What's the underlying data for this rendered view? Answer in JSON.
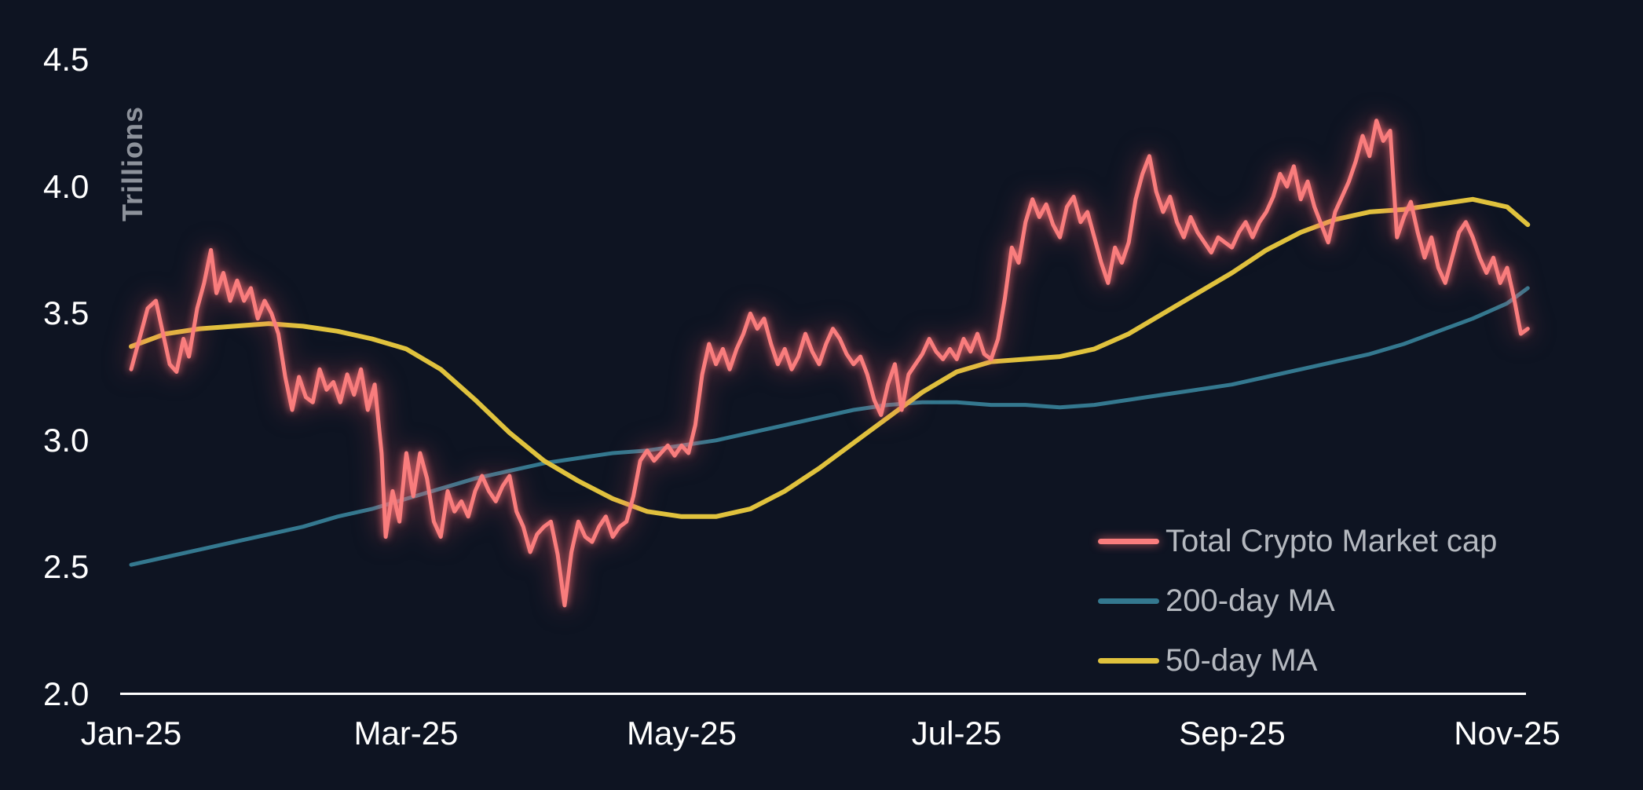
{
  "chart_data": {
    "type": "line",
    "title": "",
    "ylabel": "Trillions",
    "x_unit": "months since Jan-2025 (0 = Jan-25, 10 = Nov-25)",
    "ylim": [
      2.0,
      4.5
    ],
    "xlim": [
      0,
      10.15
    ],
    "grid": false,
    "legend_position": "bottom-right",
    "background": "#0e1422",
    "axis_color": "#ffffff",
    "yticks": [
      "4.5",
      "4.0",
      "3.5",
      "3.0",
      "2.5",
      "2.0"
    ],
    "xticks": [
      "Jan-25",
      "Mar-25",
      "May-25",
      "Jul-25",
      "Sep-25",
      "Nov-25"
    ],
    "series": [
      {
        "id": "market",
        "name": "Total Crypto Market cap",
        "color": "#f97d7d",
        "glow": true,
        "points": [
          [
            0,
            3.28
          ],
          [
            0.07,
            3.42
          ],
          [
            0.12,
            3.52
          ],
          [
            0.18,
            3.55
          ],
          [
            0.22,
            3.45
          ],
          [
            0.28,
            3.3
          ],
          [
            0.33,
            3.27
          ],
          [
            0.38,
            3.4
          ],
          [
            0.42,
            3.33
          ],
          [
            0.48,
            3.52
          ],
          [
            0.53,
            3.62
          ],
          [
            0.58,
            3.75
          ],
          [
            0.62,
            3.58
          ],
          [
            0.67,
            3.66
          ],
          [
            0.72,
            3.55
          ],
          [
            0.77,
            3.63
          ],
          [
            0.82,
            3.55
          ],
          [
            0.87,
            3.6
          ],
          [
            0.92,
            3.48
          ],
          [
            0.97,
            3.55
          ],
          [
            1.02,
            3.5
          ],
          [
            1.07,
            3.42
          ],
          [
            1.12,
            3.25
          ],
          [
            1.17,
            3.12
          ],
          [
            1.22,
            3.25
          ],
          [
            1.27,
            3.17
          ],
          [
            1.32,
            3.15
          ],
          [
            1.37,
            3.28
          ],
          [
            1.42,
            3.2
          ],
          [
            1.47,
            3.23
          ],
          [
            1.52,
            3.15
          ],
          [
            1.57,
            3.26
          ],
          [
            1.62,
            3.18
          ],
          [
            1.67,
            3.28
          ],
          [
            1.72,
            3.12
          ],
          [
            1.77,
            3.22
          ],
          [
            1.82,
            2.95
          ],
          [
            1.85,
            2.62
          ],
          [
            1.9,
            2.8
          ],
          [
            1.95,
            2.68
          ],
          [
            2.0,
            2.95
          ],
          [
            2.05,
            2.78
          ],
          [
            2.1,
            2.95
          ],
          [
            2.15,
            2.85
          ],
          [
            2.2,
            2.68
          ],
          [
            2.25,
            2.62
          ],
          [
            2.3,
            2.8
          ],
          [
            2.35,
            2.72
          ],
          [
            2.4,
            2.76
          ],
          [
            2.45,
            2.7
          ],
          [
            2.5,
            2.8
          ],
          [
            2.55,
            2.86
          ],
          [
            2.6,
            2.8
          ],
          [
            2.65,
            2.76
          ],
          [
            2.7,
            2.82
          ],
          [
            2.75,
            2.86
          ],
          [
            2.8,
            2.72
          ],
          [
            2.85,
            2.66
          ],
          [
            2.9,
            2.56
          ],
          [
            2.95,
            2.63
          ],
          [
            3.0,
            2.66
          ],
          [
            3.05,
            2.68
          ],
          [
            3.1,
            2.55
          ],
          [
            3.15,
            2.35
          ],
          [
            3.2,
            2.56
          ],
          [
            3.25,
            2.68
          ],
          [
            3.3,
            2.62
          ],
          [
            3.35,
            2.6
          ],
          [
            3.4,
            2.66
          ],
          [
            3.45,
            2.7
          ],
          [
            3.5,
            2.62
          ],
          [
            3.55,
            2.66
          ],
          [
            3.6,
            2.68
          ],
          [
            3.65,
            2.78
          ],
          [
            3.7,
            2.92
          ],
          [
            3.75,
            2.96
          ],
          [
            3.8,
            2.92
          ],
          [
            3.85,
            2.95
          ],
          [
            3.9,
            2.98
          ],
          [
            3.95,
            2.94
          ],
          [
            4.0,
            2.98
          ],
          [
            4.05,
            2.95
          ],
          [
            4.1,
            3.06
          ],
          [
            4.15,
            3.26
          ],
          [
            4.2,
            3.38
          ],
          [
            4.25,
            3.3
          ],
          [
            4.3,
            3.36
          ],
          [
            4.35,
            3.28
          ],
          [
            4.4,
            3.36
          ],
          [
            4.45,
            3.42
          ],
          [
            4.5,
            3.5
          ],
          [
            4.55,
            3.44
          ],
          [
            4.6,
            3.48
          ],
          [
            4.65,
            3.38
          ],
          [
            4.7,
            3.3
          ],
          [
            4.75,
            3.36
          ],
          [
            4.8,
            3.28
          ],
          [
            4.85,
            3.33
          ],
          [
            4.9,
            3.42
          ],
          [
            4.95,
            3.35
          ],
          [
            5.0,
            3.3
          ],
          [
            5.05,
            3.38
          ],
          [
            5.1,
            3.44
          ],
          [
            5.15,
            3.4
          ],
          [
            5.2,
            3.34
          ],
          [
            5.25,
            3.3
          ],
          [
            5.3,
            3.33
          ],
          [
            5.35,
            3.26
          ],
          [
            5.4,
            3.16
          ],
          [
            5.45,
            3.1
          ],
          [
            5.5,
            3.22
          ],
          [
            5.55,
            3.3
          ],
          [
            5.6,
            3.12
          ],
          [
            5.65,
            3.26
          ],
          [
            5.7,
            3.3
          ],
          [
            5.75,
            3.34
          ],
          [
            5.8,
            3.4
          ],
          [
            5.85,
            3.35
          ],
          [
            5.9,
            3.32
          ],
          [
            5.95,
            3.36
          ],
          [
            6.0,
            3.32
          ],
          [
            6.05,
            3.4
          ],
          [
            6.1,
            3.35
          ],
          [
            6.15,
            3.42
          ],
          [
            6.2,
            3.34
          ],
          [
            6.25,
            3.32
          ],
          [
            6.3,
            3.4
          ],
          [
            6.35,
            3.56
          ],
          [
            6.4,
            3.76
          ],
          [
            6.45,
            3.7
          ],
          [
            6.5,
            3.86
          ],
          [
            6.55,
            3.95
          ],
          [
            6.6,
            3.88
          ],
          [
            6.65,
            3.93
          ],
          [
            6.7,
            3.85
          ],
          [
            6.75,
            3.8
          ],
          [
            6.8,
            3.92
          ],
          [
            6.85,
            3.96
          ],
          [
            6.9,
            3.86
          ],
          [
            6.95,
            3.9
          ],
          [
            7.0,
            3.8
          ],
          [
            7.05,
            3.7
          ],
          [
            7.1,
            3.62
          ],
          [
            7.15,
            3.76
          ],
          [
            7.2,
            3.7
          ],
          [
            7.25,
            3.78
          ],
          [
            7.3,
            3.95
          ],
          [
            7.35,
            4.05
          ],
          [
            7.4,
            4.12
          ],
          [
            7.45,
            3.98
          ],
          [
            7.5,
            3.9
          ],
          [
            7.55,
            3.96
          ],
          [
            7.6,
            3.86
          ],
          [
            7.65,
            3.8
          ],
          [
            7.7,
            3.88
          ],
          [
            7.75,
            3.82
          ],
          [
            7.8,
            3.78
          ],
          [
            7.85,
            3.74
          ],
          [
            7.9,
            3.8
          ],
          [
            7.95,
            3.78
          ],
          [
            8.0,
            3.76
          ],
          [
            8.05,
            3.82
          ],
          [
            8.1,
            3.86
          ],
          [
            8.15,
            3.8
          ],
          [
            8.2,
            3.86
          ],
          [
            8.25,
            3.9
          ],
          [
            8.3,
            3.96
          ],
          [
            8.35,
            4.05
          ],
          [
            8.4,
            4.0
          ],
          [
            8.45,
            4.08
          ],
          [
            8.5,
            3.95
          ],
          [
            8.55,
            4.02
          ],
          [
            8.6,
            3.92
          ],
          [
            8.65,
            3.85
          ],
          [
            8.7,
            3.78
          ],
          [
            8.75,
            3.9
          ],
          [
            8.8,
            3.96
          ],
          [
            8.85,
            4.02
          ],
          [
            8.9,
            4.1
          ],
          [
            8.95,
            4.2
          ],
          [
            9.0,
            4.12
          ],
          [
            9.05,
            4.26
          ],
          [
            9.1,
            4.18
          ],
          [
            9.15,
            4.22
          ],
          [
            9.2,
            3.8
          ],
          [
            9.25,
            3.88
          ],
          [
            9.3,
            3.94
          ],
          [
            9.35,
            3.82
          ],
          [
            9.4,
            3.72
          ],
          [
            9.45,
            3.8
          ],
          [
            9.5,
            3.68
          ],
          [
            9.55,
            3.62
          ],
          [
            9.6,
            3.72
          ],
          [
            9.65,
            3.82
          ],
          [
            9.7,
            3.86
          ],
          [
            9.75,
            3.8
          ],
          [
            9.8,
            3.72
          ],
          [
            9.85,
            3.66
          ],
          [
            9.9,
            3.72
          ],
          [
            9.95,
            3.62
          ],
          [
            10.0,
            3.68
          ],
          [
            10.05,
            3.56
          ],
          [
            10.1,
            3.42
          ],
          [
            10.15,
            3.44
          ]
        ]
      },
      {
        "id": "ma200",
        "name": "200-day MA",
        "color": "#34788f",
        "glow": false,
        "points": [
          [
            0,
            2.51
          ],
          [
            0.25,
            2.54
          ],
          [
            0.5,
            2.57
          ],
          [
            0.75,
            2.6
          ],
          [
            1,
            2.63
          ],
          [
            1.25,
            2.66
          ],
          [
            1.5,
            2.7
          ],
          [
            1.75,
            2.73
          ],
          [
            2,
            2.77
          ],
          [
            2.25,
            2.81
          ],
          [
            2.5,
            2.85
          ],
          [
            2.75,
            2.88
          ],
          [
            3,
            2.91
          ],
          [
            3.25,
            2.93
          ],
          [
            3.5,
            2.95
          ],
          [
            3.75,
            2.96
          ],
          [
            4,
            2.98
          ],
          [
            4.25,
            3.0
          ],
          [
            4.5,
            3.03
          ],
          [
            4.75,
            3.06
          ],
          [
            5,
            3.09
          ],
          [
            5.25,
            3.12
          ],
          [
            5.5,
            3.14
          ],
          [
            5.75,
            3.15
          ],
          [
            6,
            3.15
          ],
          [
            6.25,
            3.14
          ],
          [
            6.5,
            3.14
          ],
          [
            6.75,
            3.13
          ],
          [
            7,
            3.14
          ],
          [
            7.25,
            3.16
          ],
          [
            7.5,
            3.18
          ],
          [
            7.75,
            3.2
          ],
          [
            8,
            3.22
          ],
          [
            8.25,
            3.25
          ],
          [
            8.5,
            3.28
          ],
          [
            8.75,
            3.31
          ],
          [
            9,
            3.34
          ],
          [
            9.25,
            3.38
          ],
          [
            9.5,
            3.43
          ],
          [
            9.75,
            3.48
          ],
          [
            10,
            3.54
          ],
          [
            10.15,
            3.6
          ]
        ]
      },
      {
        "id": "ma50",
        "name": "50-day MA",
        "color": "#e0c23d",
        "glow": false,
        "points": [
          [
            0,
            3.37
          ],
          [
            0.25,
            3.42
          ],
          [
            0.5,
            3.44
          ],
          [
            0.75,
            3.45
          ],
          [
            1,
            3.46
          ],
          [
            1.25,
            3.45
          ],
          [
            1.5,
            3.43
          ],
          [
            1.75,
            3.4
          ],
          [
            2,
            3.36
          ],
          [
            2.25,
            3.28
          ],
          [
            2.5,
            3.16
          ],
          [
            2.75,
            3.03
          ],
          [
            3,
            2.92
          ],
          [
            3.25,
            2.84
          ],
          [
            3.5,
            2.77
          ],
          [
            3.75,
            2.72
          ],
          [
            4,
            2.7
          ],
          [
            4.25,
            2.7
          ],
          [
            4.5,
            2.73
          ],
          [
            4.75,
            2.8
          ],
          [
            5,
            2.89
          ],
          [
            5.25,
            2.99
          ],
          [
            5.5,
            3.09
          ],
          [
            5.75,
            3.19
          ],
          [
            6,
            3.27
          ],
          [
            6.25,
            3.31
          ],
          [
            6.5,
            3.32
          ],
          [
            6.75,
            3.33
          ],
          [
            7,
            3.36
          ],
          [
            7.25,
            3.42
          ],
          [
            7.5,
            3.5
          ],
          [
            7.75,
            3.58
          ],
          [
            8,
            3.66
          ],
          [
            8.25,
            3.75
          ],
          [
            8.5,
            3.82
          ],
          [
            8.75,
            3.87
          ],
          [
            9,
            3.9
          ],
          [
            9.25,
            3.91
          ],
          [
            9.5,
            3.93
          ],
          [
            9.75,
            3.95
          ],
          [
            10,
            3.92
          ],
          [
            10.15,
            3.85
          ]
        ]
      }
    ]
  }
}
